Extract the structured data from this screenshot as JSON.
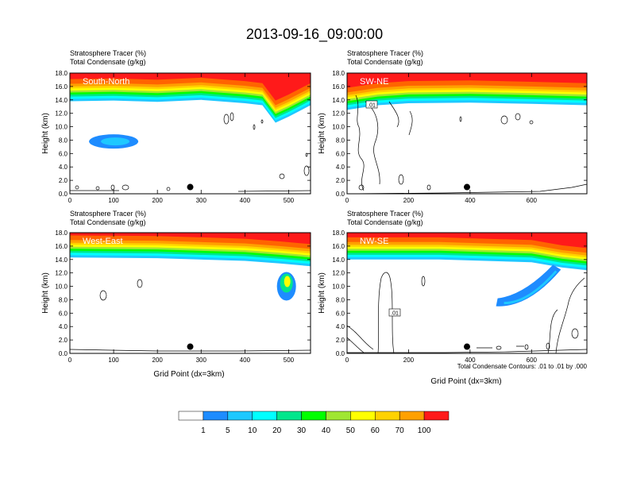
{
  "title": "2013-09-16_09:00:00",
  "header_line1": "Stratosphere Tracer   (%)",
  "header_line2": "Total Condensate   (g/kg)",
  "x_axis_label": "Grid Point (dx=3km)",
  "y_axis_label": "Height (km)",
  "contour_note": "Total Condensate Contours: .01 to .01 by .000",
  "colors": {
    "levels": [
      "#ffffff",
      "#1e8cff",
      "#1ec8ff",
      "#00ffff",
      "#00e68c",
      "#00ff00",
      "#a0e632",
      "#ffff00",
      "#ffd200",
      "#ffa000",
      "#ff6400",
      "#ff1a1a"
    ],
    "frame": "#000000"
  },
  "colorbar": {
    "labels": [
      "1",
      "5",
      "10",
      "20",
      "30",
      "40",
      "50",
      "60",
      "70",
      "100"
    ]
  },
  "chart_data": [
    {
      "type": "heatmap",
      "name": "South-North",
      "ylim": [
        0,
        18
      ],
      "xlim": [
        0,
        550
      ],
      "x_ticks": [
        "0",
        "100",
        "200",
        "300",
        "400",
        "500"
      ],
      "y_ticks": [
        "0.0",
        "2.0",
        "4.0",
        "6.0",
        "8.0",
        "10.0",
        "12.0",
        "14.0",
        "16.0",
        "18.0"
      ],
      "tracer_layer_base_km": [
        {
          "x": 0,
          "base": 13.8
        },
        {
          "x": 100,
          "base": 13.9
        },
        {
          "x": 200,
          "base": 13.7
        },
        {
          "x": 300,
          "base": 14.0
        },
        {
          "x": 400,
          "base": 13.5
        },
        {
          "x": 440,
          "base": 13.2
        },
        {
          "x": 470,
          "base": 10.6
        },
        {
          "x": 500,
          "base": 11.5
        },
        {
          "x": 550,
          "base": 13.2
        }
      ],
      "blob": {
        "x": 100,
        "y": 7.8,
        "value": "5-10"
      },
      "marker": {
        "x": 275,
        "y": 1.0
      }
    },
    {
      "type": "heatmap",
      "name": "SW-NE",
      "ylim": [
        0,
        18
      ],
      "xlim": [
        0,
        780
      ],
      "x_ticks": [
        "0",
        "200",
        "400",
        "600"
      ],
      "y_ticks": [
        "0.0",
        "2.0",
        "4.0",
        "6.0",
        "8.0",
        "10.0",
        "12.0",
        "14.0",
        "16.0",
        "18.0"
      ],
      "tracer_layer_base_km": [
        {
          "x": 0,
          "base": 12.5
        },
        {
          "x": 100,
          "base": 13.2
        },
        {
          "x": 200,
          "base": 13.5
        },
        {
          "x": 400,
          "base": 13.6
        },
        {
          "x": 600,
          "base": 13.4
        },
        {
          "x": 780,
          "base": 13.2
        }
      ],
      "contour_label": ".01",
      "marker": {
        "x": 390,
        "y": 1.0
      }
    },
    {
      "type": "heatmap",
      "name": "West-East",
      "ylim": [
        0,
        18
      ],
      "xlim": [
        0,
        550
      ],
      "x_ticks": [
        "0",
        "100",
        "200",
        "300",
        "400",
        "500"
      ],
      "y_ticks": [
        "0.0",
        "2.0",
        "4.0",
        "6.0",
        "8.0",
        "10.0",
        "12.0",
        "14.0",
        "16.0",
        "18.0"
      ],
      "tracer_layer_base_km": [
        {
          "x": 0,
          "base": 14.3
        },
        {
          "x": 200,
          "base": 14.2
        },
        {
          "x": 400,
          "base": 13.8
        },
        {
          "x": 480,
          "base": 13.4
        },
        {
          "x": 550,
          "base": 13.0
        }
      ],
      "blob": {
        "x": 495,
        "y": 10.0,
        "value": "5-50"
      },
      "marker": {
        "x": 275,
        "y": 1.0
      }
    },
    {
      "type": "heatmap",
      "name": "NW-SE",
      "ylim": [
        0,
        18
      ],
      "xlim": [
        0,
        780
      ],
      "x_ticks": [
        "0",
        "200",
        "400",
        "600"
      ],
      "y_ticks": [
        "0.0",
        "2.0",
        "4.0",
        "6.0",
        "8.0",
        "10.0",
        "12.0",
        "14.0",
        "16.0",
        "18.0"
      ],
      "tracer_layer_base_km": [
        {
          "x": 0,
          "base": 14.0
        },
        {
          "x": 300,
          "base": 14.0
        },
        {
          "x": 600,
          "base": 13.6
        },
        {
          "x": 700,
          "base": 12.8
        },
        {
          "x": 780,
          "base": 12.4
        }
      ],
      "plume": {
        "from_x": 500,
        "from_y": 7.5,
        "to_x": 680,
        "to_y": 12.5,
        "value": "5-30"
      },
      "contour_label": ".01",
      "marker": {
        "x": 390,
        "y": 1.0
      }
    }
  ]
}
